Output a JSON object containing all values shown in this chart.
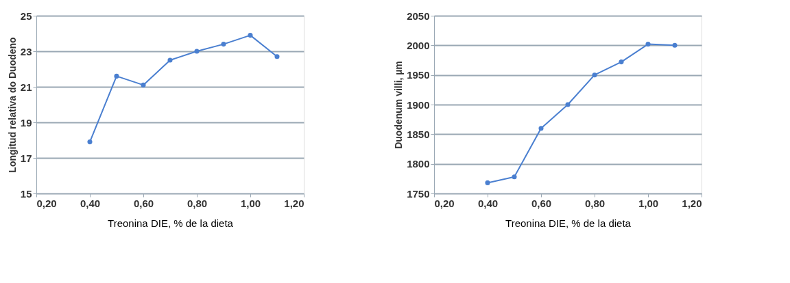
{
  "chart_data": [
    {
      "type": "line",
      "xlabel": "Treonina DIE, % de la dieta",
      "ylabel": "Longitud relativa do Duodeno",
      "grid": "y",
      "marker": "circle",
      "x": [
        0.4,
        0.5,
        0.6,
        0.7,
        0.8,
        0.9,
        1.0,
        1.1
      ],
      "series": [
        {
          "color": "#4a7fd0",
          "values": [
            17.9,
            21.6,
            21.1,
            22.5,
            23.0,
            23.4,
            23.9,
            22.7
          ]
        }
      ],
      "xlim": [
        0.2,
        1.2
      ],
      "xticks": [
        {
          "value": 0.2,
          "label": "0,20"
        },
        {
          "value": 0.4,
          "label": "0,40"
        },
        {
          "value": 0.6,
          "label": "0,60"
        },
        {
          "value": 0.8,
          "label": "0,80"
        },
        {
          "value": 1.0,
          "label": "1,00"
        },
        {
          "value": 1.2,
          "label": "1,20"
        }
      ],
      "ylim": [
        15,
        25
      ],
      "yticks": [
        15,
        17,
        19,
        21,
        23,
        25
      ]
    },
    {
      "type": "line",
      "xlabel": "Treonina DIE, % de la dieta",
      "ylabel": "Duodenum villi, µm",
      "grid": "y",
      "marker": "circle",
      "x": [
        0.4,
        0.5,
        0.6,
        0.7,
        0.8,
        0.9,
        1.0,
        1.1
      ],
      "series": [
        {
          "color": "#4a7fd0",
          "values": [
            1768,
            1778,
            1860,
            1900,
            1950,
            1972,
            2002,
            2000
          ]
        }
      ],
      "xlim": [
        0.2,
        1.2
      ],
      "xticks": [
        {
          "value": 0.2,
          "label": "0,20"
        },
        {
          "value": 0.4,
          "label": "0,40"
        },
        {
          "value": 0.6,
          "label": "0,60"
        },
        {
          "value": 0.8,
          "label": "0,80"
        },
        {
          "value": 1.0,
          "label": "1,00"
        },
        {
          "value": 1.2,
          "label": "1,20"
        }
      ],
      "ylim": [
        1750,
        2050
      ],
      "yticks": [
        1750,
        1800,
        1850,
        1900,
        1950,
        2000,
        2050
      ]
    }
  ]
}
